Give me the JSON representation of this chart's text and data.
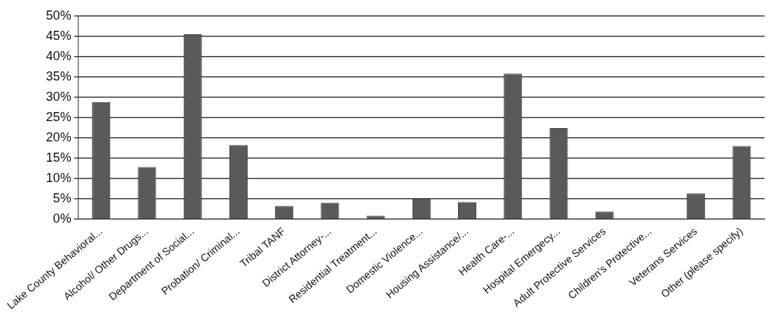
{
  "chart_data": {
    "type": "bar",
    "categories": [
      "Lake County Behavioral...",
      "Alcohol/ Other Drugs...",
      "Department of Social...",
      "Probation/ Criminal...",
      "Tribal TANF",
      "District Attorney-...",
      "Residential Treatment...",
      "Domestic Violence...",
      "Housing Assistance/...",
      "Health Care-...",
      "Hospital Emergecy...",
      "Adult Protective Services",
      "Children's Protective...",
      "Veterans Services",
      "Other (please specify)"
    ],
    "values": [
      28.8,
      12.8,
      45.5,
      18.2,
      3.2,
      4.0,
      0.8,
      5.0,
      4.2,
      35.8,
      22.4,
      1.8,
      0,
      6.3,
      18.0
    ],
    "color": "#5a5a5a",
    "ylim": [
      0,
      50
    ],
    "yticks": [
      {
        "value": 0,
        "label": "0%"
      },
      {
        "value": 5,
        "label": "5%"
      },
      {
        "value": 10,
        "label": "10%"
      },
      {
        "value": 15,
        "label": "15%"
      },
      {
        "value": 20,
        "label": "20%"
      },
      {
        "value": 25,
        "label": "25%"
      },
      {
        "value": 30,
        "label": "30%"
      },
      {
        "value": 35,
        "label": "35%"
      },
      {
        "value": 40,
        "label": "40%"
      },
      {
        "value": 45,
        "label": "45%"
      },
      {
        "value": 50,
        "label": "50%"
      }
    ],
    "grid": "y",
    "legend": false
  }
}
